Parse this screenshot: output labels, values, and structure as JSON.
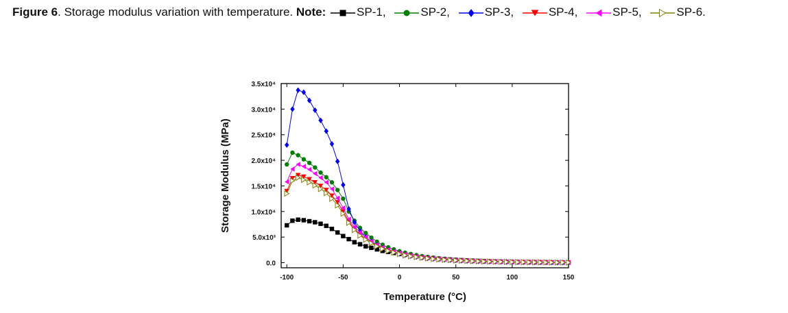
{
  "caption": {
    "figure_label": "Figure 6",
    "text": ". Storage modulus variation with temperature. ",
    "note_label": "Note:"
  },
  "legend": [
    {
      "name": "SP-1",
      "text": "SP-1,",
      "color": "#000000",
      "marker": "square"
    },
    {
      "name": "SP-2",
      "text": "SP-2,",
      "color": "#008000",
      "marker": "circle"
    },
    {
      "name": "SP-3",
      "text": "SP-3,",
      "color": "#0000ff",
      "marker": "diamond"
    },
    {
      "name": "SP-4",
      "text": "SP-4,",
      "color": "#ff0000",
      "marker": "triangle-down"
    },
    {
      "name": "SP-5",
      "text": "SP-5,",
      "color": "#ff00ff",
      "marker": "triangle-left"
    },
    {
      "name": "SP-6",
      "text": "SP-6.",
      "color": "#808000",
      "marker": "triangle-right-open"
    }
  ],
  "chart_data": {
    "type": "line",
    "title": "",
    "xlabel": "Temperature (°C)",
    "ylabel": "Storage Modulus (MPa)",
    "xlim": [
      -105,
      150
    ],
    "ylim": [
      -1000,
      35000
    ],
    "x_ticks": [
      -100,
      -50,
      0,
      50,
      100,
      150
    ],
    "x_tick_labels": [
      "-100",
      "-50",
      "0",
      "50",
      "100",
      "150"
    ],
    "y_ticks": [
      0,
      5000,
      10000,
      15000,
      20000,
      25000,
      30000,
      35000
    ],
    "y_tick_labels": [
      "0.0",
      "5.0x10³",
      "1.0x10⁴",
      "1.5x10⁴",
      "2.0x10⁴",
      "2.5x10⁴",
      "3.0x10⁴",
      "3.5x10⁴"
    ],
    "x": [
      -100,
      -95,
      -90,
      -85,
      -80,
      -75,
      -70,
      -65,
      -60,
      -55,
      -50,
      -45,
      -40,
      -35,
      -30,
      -25,
      -20,
      -15,
      -10,
      -5,
      0,
      5,
      10,
      15,
      20,
      25,
      30,
      35,
      40,
      45,
      50,
      55,
      60,
      65,
      70,
      75,
      80,
      85,
      90,
      95,
      100,
      105,
      110,
      115,
      120,
      125,
      130,
      135,
      140,
      145,
      150
    ],
    "series": [
      {
        "name": "SP-1",
        "color": "#000000",
        "marker": "square",
        "values": [
          7300,
          8200,
          8400,
          8300,
          8100,
          7900,
          7600,
          7200,
          6600,
          5900,
          5200,
          4600,
          4000,
          3600,
          3200,
          2900,
          2600,
          2300,
          2100,
          1900,
          1700,
          1550,
          1400,
          1250,
          1100,
          980,
          870,
          780,
          700,
          620,
          550,
          490,
          430,
          380,
          340,
          300,
          260,
          230,
          200,
          170,
          150,
          130,
          110,
          95,
          80,
          70,
          60,
          50,
          40,
          35,
          30
        ]
      },
      {
        "name": "SP-2",
        "color": "#008000",
        "marker": "circle",
        "values": [
          19200,
          21500,
          21000,
          20200,
          19500,
          18600,
          17600,
          16700,
          15700,
          14200,
          12500,
          10000,
          8200,
          6800,
          5800,
          4900,
          4100,
          3500,
          3000,
          2600,
          2250,
          1950,
          1700,
          1480,
          1290,
          1130,
          990,
          870,
          760,
          670,
          590,
          520,
          460,
          410,
          360,
          320,
          280,
          250,
          220,
          190,
          170,
          150,
          130,
          115,
          100,
          88,
          77,
          67,
          58,
          50,
          44
        ]
      },
      {
        "name": "SP-3",
        "color": "#0000ff",
        "marker": "diamond",
        "values": [
          23000,
          30000,
          33700,
          33300,
          31700,
          29800,
          27800,
          25700,
          23200,
          19800,
          15200,
          10500,
          7900,
          6200,
          5000,
          4100,
          3400,
          2850,
          2400,
          2050,
          1750,
          1500,
          1300,
          1130,
          980,
          860,
          750,
          660,
          580,
          510,
          450,
          400,
          350,
          310,
          270,
          240,
          210,
          185,
          165,
          145,
          128,
          113,
          100,
          88,
          78,
          69,
          61,
          54,
          48,
          43,
          38
        ]
      },
      {
        "name": "SP-4",
        "color": "#ff0000",
        "marker": "triangle-down",
        "values": [
          14000,
          16500,
          17100,
          16800,
          16300,
          15700,
          15000,
          14200,
          13100,
          11800,
          10000,
          8100,
          6600,
          5500,
          4600,
          3900,
          3300,
          2800,
          2400,
          2050,
          1750,
          1500,
          1300,
          1130,
          980,
          860,
          750,
          660,
          580,
          510,
          450,
          400,
          350,
          310,
          270,
          240,
          210,
          185,
          165,
          145,
          128,
          113,
          100,
          88,
          78,
          69,
          61,
          54,
          48,
          43,
          38
        ]
      },
      {
        "name": "SP-5",
        "color": "#ff00ff",
        "marker": "triangle-left",
        "values": [
          15800,
          18300,
          19200,
          18800,
          18200,
          17400,
          16600,
          15700,
          14400,
          12600,
          10700,
          8500,
          7000,
          5900,
          5000,
          4200,
          3550,
          3000,
          2550,
          2200,
          1900,
          1630,
          1400,
          1220,
          1060,
          930,
          820,
          720,
          630,
          560,
          490,
          430,
          380,
          335,
          295,
          260,
          230,
          205,
          180,
          160,
          140,
          124,
          110,
          97,
          86,
          76,
          67,
          59,
          52,
          46,
          40
        ]
      },
      {
        "name": "SP-6",
        "color": "#808000",
        "marker": "triangle-right-open",
        "values": [
          13500,
          16000,
          16600,
          16200,
          15700,
          15100,
          14400,
          13600,
          12500,
          11200,
          9600,
          7800,
          6400,
          5300,
          4500,
          3800,
          3200,
          2700,
          2300,
          1980,
          1700,
          1460,
          1260,
          1100,
          960,
          840,
          735,
          645,
          565,
          500,
          440,
          390,
          345,
          305,
          270,
          240,
          210,
          185,
          165,
          145,
          128,
          113,
          100,
          88,
          78,
          69,
          61,
          54,
          48,
          43,
          38
        ]
      }
    ]
  }
}
